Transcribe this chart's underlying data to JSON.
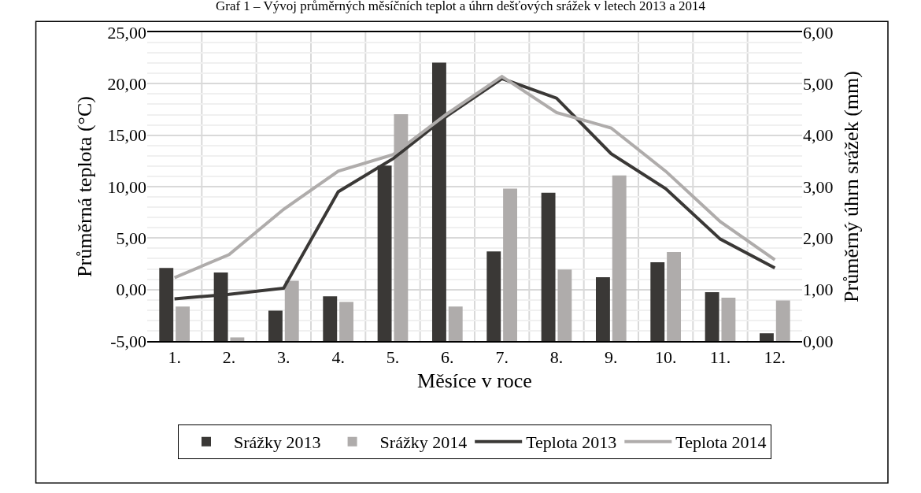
{
  "chart_data": {
    "type": "bar",
    "title": "Graf 1 – Vývoj průměrných měsíčních teplot a úhrn dešťových srážek v letech 2013 a 2014",
    "xlabel": "Měsíce v roce",
    "ylabel": "Průměrná teplota (°C)",
    "y2label": "Průměrný úhrn srážek (mm)",
    "categories": [
      "1.",
      "2.",
      "3.",
      "4.",
      "5.",
      "6.",
      "7.",
      "8.",
      "9.",
      "10.",
      "11.",
      "12."
    ],
    "series": [
      {
        "name": "Srážky 2013",
        "axis": "y2",
        "color": "#3a3836",
        "values": [
          1.42,
          1.33,
          0.59,
          0.87,
          3.41,
          5.41,
          1.74,
          2.88,
          1.24,
          1.53,
          0.95,
          0.15
        ]
      },
      {
        "name": "Srážky 2014",
        "axis": "y2",
        "color": "#afacab",
        "values": [
          0.67,
          0.07,
          1.17,
          0.76,
          4.41,
          0.67,
          2.96,
          1.39,
          3.22,
          1.73,
          0.84,
          0.79
        ]
      },
      {
        "name": "Teplota 2013",
        "type": "line",
        "color": "#3a3836",
        "values": [
          -0.9,
          -0.46,
          0.13,
          9.5,
          12.7,
          16.9,
          20.5,
          18.6,
          13.2,
          9.8,
          4.9,
          2.1
        ]
      },
      {
        "name": "Teplota 2014",
        "type": "line",
        "color": "#afacab",
        "values": [
          1.15,
          3.4,
          7.8,
          11.5,
          13.1,
          17.1,
          20.7,
          17.2,
          15.7,
          11.5,
          6.6,
          2.9
        ]
      }
    ],
    "ylim": [
      -5,
      25
    ],
    "yticks": [
      {
        "value": -5,
        "label": "-5,00"
      },
      {
        "value": 0,
        "label": "0,00"
      },
      {
        "value": 5,
        "label": "5,00"
      },
      {
        "value": 10,
        "label": "10,00"
      },
      {
        "value": 15,
        "label": "15,00"
      },
      {
        "value": 20,
        "label": "20,00"
      },
      {
        "value": 25,
        "label": "25,00"
      }
    ],
    "y2lim": [
      0,
      6
    ],
    "y2ticks": [
      {
        "value": 0,
        "label": "0,00"
      },
      {
        "value": 1,
        "label": "1,00"
      },
      {
        "value": 2,
        "label": "2,00"
      },
      {
        "value": 3,
        "label": "3,00"
      },
      {
        "value": 4,
        "label": "4,00"
      },
      {
        "value": 5,
        "label": "5,00"
      },
      {
        "value": 6,
        "label": "6,00"
      }
    ],
    "grid": true,
    "legend": "bottom",
    "marker": "none",
    "line_style": "solid"
  }
}
